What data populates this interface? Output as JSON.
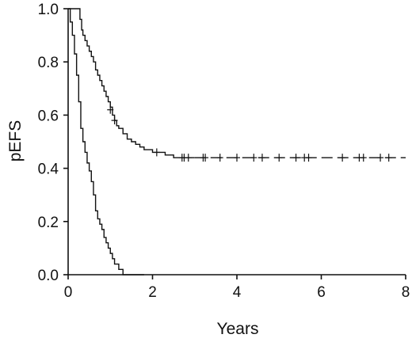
{
  "chart_data": {
    "type": "line",
    "subtype": "kaplan-meier step curves",
    "title": "",
    "xlabel": "Years",
    "ylabel": "pEFS",
    "xlim": [
      0,
      8
    ],
    "ylim": [
      0,
      1.0
    ],
    "x_ticks": [
      "0",
      "2",
      "4",
      "6",
      "8"
    ],
    "y_ticks": [
      "0.0",
      "0.2",
      "0.4",
      "0.6",
      "0.8",
      "1.0"
    ],
    "grid": false,
    "legend": "none",
    "series": [
      {
        "style": "solid to dashed plateau",
        "x": [
          0,
          0.25,
          0.28,
          0.32,
          0.35,
          0.4,
          0.45,
          0.5,
          0.55,
          0.6,
          0.65,
          0.7,
          0.75,
          0.8,
          0.85,
          0.9,
          0.95,
          1.0,
          1.05,
          1.1,
          1.15,
          1.2,
          1.3,
          1.4,
          1.5,
          1.6,
          1.7,
          1.8,
          2.0,
          2.3,
          2.5,
          3.0,
          8.0
        ],
        "y": [
          1.0,
          1.0,
          0.96,
          0.92,
          0.9,
          0.88,
          0.86,
          0.84,
          0.82,
          0.8,
          0.77,
          0.75,
          0.73,
          0.71,
          0.69,
          0.67,
          0.65,
          0.63,
          0.6,
          0.58,
          0.56,
          0.55,
          0.53,
          0.51,
          0.5,
          0.49,
          0.48,
          0.47,
          0.46,
          0.45,
          0.44,
          0.44,
          0.44
        ],
        "censored": [
          {
            "x": 1.0,
            "y": 0.62
          },
          {
            "x": 1.1,
            "y": 0.58
          },
          {
            "x": 2.1,
            "y": 0.46
          },
          {
            "x": 2.7,
            "y": 0.44
          },
          {
            "x": 2.75,
            "y": 0.44
          },
          {
            "x": 2.85,
            "y": 0.44
          },
          {
            "x": 3.2,
            "y": 0.44
          },
          {
            "x": 3.25,
            "y": 0.44
          },
          {
            "x": 3.6,
            "y": 0.44
          },
          {
            "x": 4.0,
            "y": 0.44
          },
          {
            "x": 4.4,
            "y": 0.44
          },
          {
            "x": 4.6,
            "y": 0.44
          },
          {
            "x": 5.0,
            "y": 0.44
          },
          {
            "x": 5.4,
            "y": 0.44
          },
          {
            "x": 5.6,
            "y": 0.44
          },
          {
            "x": 5.7,
            "y": 0.44
          },
          {
            "x": 6.5,
            "y": 0.44
          },
          {
            "x": 6.9,
            "y": 0.44
          },
          {
            "x": 7.0,
            "y": 0.44
          },
          {
            "x": 7.4,
            "y": 0.44
          },
          {
            "x": 7.6,
            "y": 0.44
          }
        ]
      },
      {
        "style": "solid",
        "x": [
          0,
          0.05,
          0.1,
          0.15,
          0.2,
          0.25,
          0.3,
          0.35,
          0.4,
          0.45,
          0.5,
          0.55,
          0.6,
          0.65,
          0.7,
          0.75,
          0.8,
          0.85,
          0.9,
          0.95,
          1.0,
          1.05,
          1.1,
          1.2,
          1.3,
          1.8
        ],
        "y": [
          1.0,
          0.95,
          0.9,
          0.83,
          0.75,
          0.65,
          0.55,
          0.5,
          0.46,
          0.42,
          0.39,
          0.35,
          0.3,
          0.24,
          0.21,
          0.19,
          0.17,
          0.14,
          0.12,
          0.1,
          0.08,
          0.06,
          0.04,
          0.02,
          0.0,
          0.0
        ],
        "censored": []
      }
    ]
  }
}
